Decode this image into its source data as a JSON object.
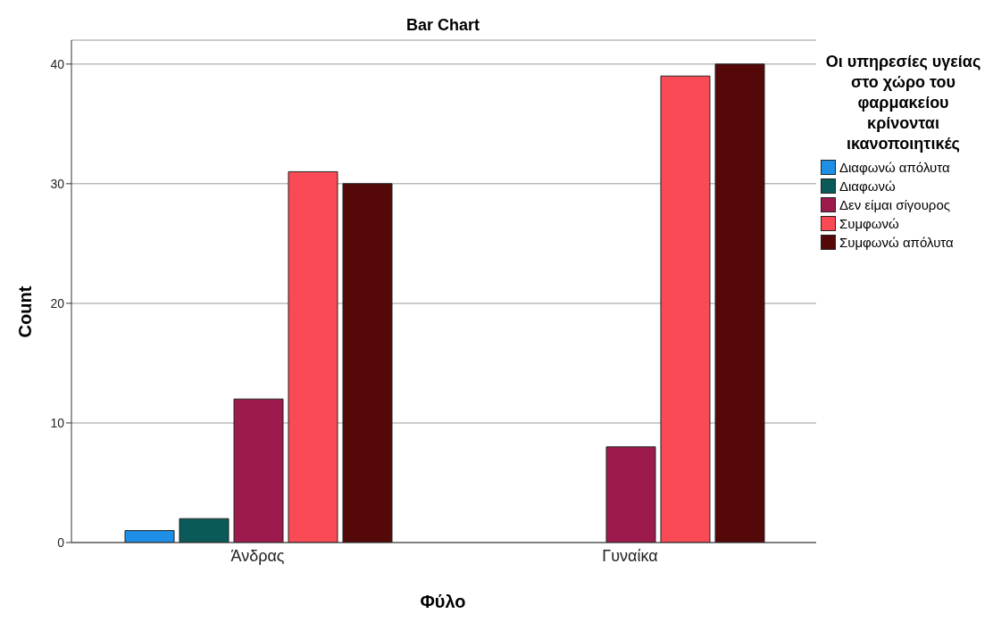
{
  "chart_data": {
    "type": "bar",
    "title": "Bar Chart",
    "xlabel": "Φύλο",
    "ylabel": "Count",
    "legend_title": "Οι υπηρεσίες υγείας στο χώρο του φαρμακείου κρίνονται ικανοποιητικές",
    "categories": [
      "Άνδρας",
      "Γυναίκα"
    ],
    "series": [
      {
        "name": "Διαφωνώ απόλυτα",
        "color": "#1e8fe6",
        "values": [
          1,
          null
        ]
      },
      {
        "name": "Διαφωνώ",
        "color": "#0b5a5a",
        "values": [
          2,
          null
        ]
      },
      {
        "name": "Δεν είμαι σίγουρος",
        "color": "#9c1a4c",
        "values": [
          12,
          8
        ]
      },
      {
        "name": "Συμφωνώ",
        "color": "#fa4a55",
        "values": [
          31,
          39
        ]
      },
      {
        "name": "Συμφωνώ απόλυτα",
        "color": "#540808",
        "values": [
          30,
          40
        ]
      }
    ],
    "ylim": [
      0,
      42
    ],
    "yticks": [
      0,
      10,
      20,
      30,
      40
    ],
    "grid": "y",
    "legend": "right"
  }
}
